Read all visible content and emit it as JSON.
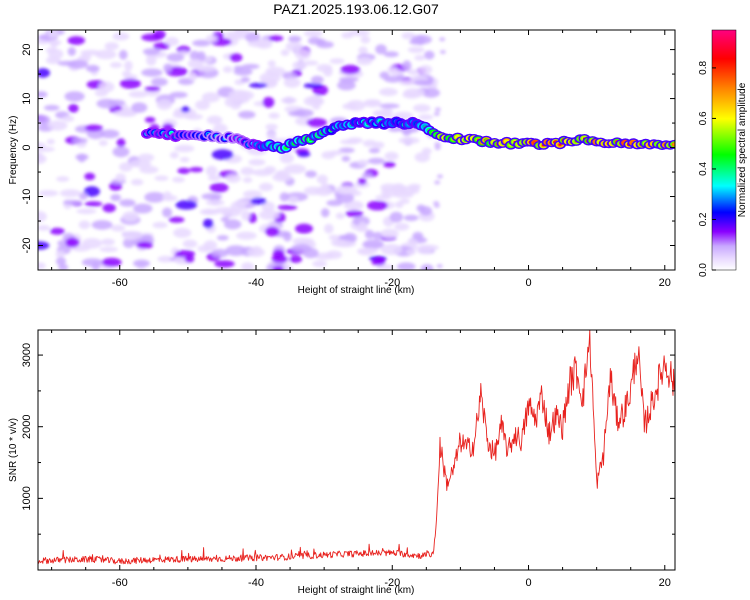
{
  "title": "PAZ1.2025.193.06.12.G07",
  "chart_data": [
    {
      "type": "heatmap",
      "xlabel": "Height of straight line (km)",
      "ylabel": "Frequency (Hz)",
      "xlim": [
        -72,
        21.5
      ],
      "ylim": [
        -25,
        24
      ],
      "x_ticks": [
        -60,
        -40,
        -20,
        0,
        20
      ],
      "y_ticks": [
        -20,
        -10,
        0,
        10,
        20
      ],
      "colorbar": {
        "label": "Normalized spectral amplitude",
        "range": [
          0,
          0.95
        ],
        "ticks": [
          "0.0",
          "0.2",
          "0.4",
          "0.6",
          "0.8"
        ],
        "colormap": [
          "#ffffff",
          "#e8d8ff",
          "#c8a8ff",
          "#8a00ff",
          "#0000ff",
          "#00ffff",
          "#00ff00",
          "#ffff00",
          "#ff8000",
          "#ff0000",
          "#ff0080"
        ]
      },
      "ridge": {
        "x": [
          -56,
          -52,
          -48,
          -44,
          -40,
          -36,
          -32,
          -28,
          -24,
          -20,
          -16,
          -14,
          -12,
          -8,
          -4,
          0,
          4,
          8,
          12,
          16,
          20
        ],
        "frequency": [
          3,
          2.5,
          2.5,
          2,
          0.5,
          0,
          2,
          4.5,
          5,
          5,
          5,
          3,
          2,
          1.5,
          1,
          0.7,
          0.8,
          1.8,
          1,
          0.6,
          0.3
        ],
        "amplitude": [
          0.15,
          0.15,
          0.12,
          0.1,
          0.15,
          0.25,
          0.3,
          0.22,
          0.18,
          0.2,
          0.18,
          0.35,
          0.45,
          0.5,
          0.55,
          0.6,
          0.6,
          0.55,
          0.6,
          0.6,
          0.55
        ]
      }
    },
    {
      "type": "line",
      "xlabel": "Height of straight line (km)",
      "ylabel": "SNR (10 * v/v)",
      "xlim": [
        -72,
        21.5
      ],
      "ylim": [
        0,
        3350
      ],
      "x_ticks": [
        -60,
        -40,
        -20,
        0,
        20
      ],
      "y_ticks": [
        1000,
        2000,
        3000
      ],
      "series": [
        {
          "color": "#e8221e",
          "x": [
            -72,
            -68,
            -64,
            -60,
            -56,
            -52,
            -48,
            -44,
            -40,
            -36,
            -32,
            -28,
            -24,
            -20,
            -16,
            -14,
            -13.5,
            -13,
            -12,
            -11,
            -10,
            -9,
            -8,
            -7,
            -6,
            -5,
            -4,
            -3,
            -2,
            -1,
            0,
            1,
            2,
            3,
            4,
            5,
            6,
            7,
            8,
            9,
            10,
            11,
            12,
            13,
            14,
            15,
            16,
            17,
            18,
            19,
            20,
            21,
            21.5
          ],
          "y": [
            130,
            140,
            150,
            120,
            140,
            150,
            150,
            160,
            170,
            180,
            200,
            220,
            230,
            240,
            200,
            220,
            700,
            1750,
            1200,
            1400,
            1800,
            1700,
            1750,
            2450,
            1800,
            1600,
            2000,
            1650,
            1900,
            1800,
            2300,
            2100,
            2450,
            1900,
            2150,
            2000,
            2600,
            2800,
            2400,
            3300,
            1200,
            1600,
            2700,
            2100,
            2200,
            2500,
            3100,
            2000,
            2300,
            2600,
            2900,
            2700,
            2500
          ]
        }
      ]
    }
  ]
}
